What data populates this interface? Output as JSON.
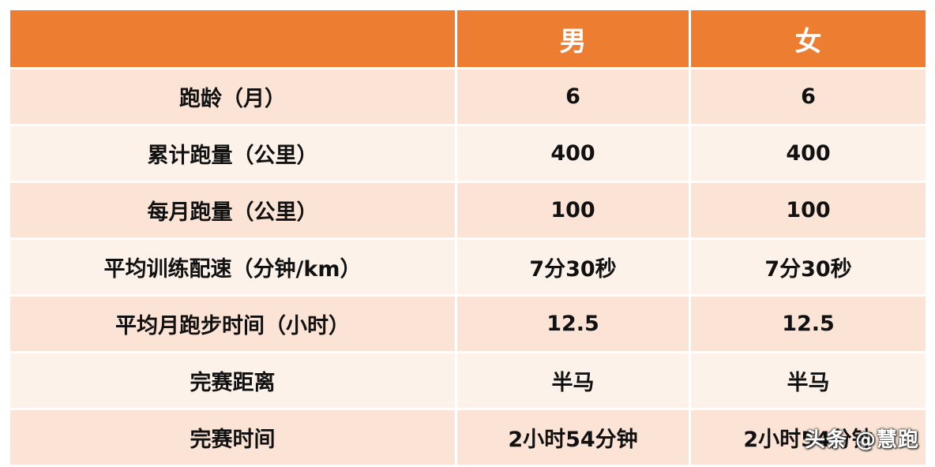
{
  "table": {
    "header": [
      "",
      "男",
      "女"
    ],
    "rows": [
      [
        "跑龄（月）",
        "6",
        "6"
      ],
      [
        "累计跑量（公里）",
        "400",
        "400"
      ],
      [
        "每月跑量（公里）",
        "100",
        "100"
      ],
      [
        "平均训练配速（分钟/km）",
        "7分30秒",
        "7分30秒"
      ],
      [
        "平均月跑步时间（小时）",
        "12.5",
        "12.5"
      ],
      [
        "完赛距离",
        "半马",
        "半马"
      ],
      [
        "完赛时间",
        "2小时54分钟",
        "2小时54分钟"
      ]
    ]
  },
  "watermark": "头条 @慧跑",
  "colors": {
    "header_bg": "#ed7d31",
    "row_odd_bg": "#fbe4d5",
    "row_even_bg": "#fdf2ea"
  }
}
